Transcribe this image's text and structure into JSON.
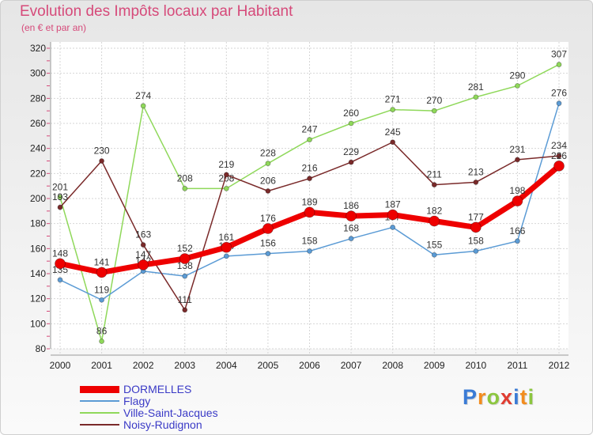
{
  "chart_data": {
    "type": "line",
    "title": "Evolution des Impôts locaux par Habitant",
    "subtitle": "(en € et par an)",
    "x": [
      "2000",
      "2001",
      "2002",
      "2003",
      "2004",
      "2005",
      "2006",
      "2007",
      "2008",
      "2009",
      "2010",
      "2011",
      "2012"
    ],
    "ylim": [
      80,
      320
    ],
    "yticks": [
      80,
      100,
      120,
      140,
      160,
      180,
      200,
      220,
      240,
      260,
      280,
      300,
      320
    ],
    "grid": true,
    "legend_position": "bottom-left",
    "series": [
      {
        "name": "DORMELLES",
        "color": "#ee0000",
        "values": [
          148,
          141,
          147,
          152,
          161,
          176,
          189,
          186,
          187,
          182,
          177,
          198,
          226
        ]
      },
      {
        "name": "Flagy",
        "color": "#5b9bd5",
        "values": [
          135,
          119,
          142,
          138,
          154,
          156,
          158,
          168,
          177,
          155,
          158,
          166,
          276
        ]
      },
      {
        "name": "Ville-Saint-Jacques",
        "color": "#8fd85a",
        "values": [
          201,
          86,
          274,
          208,
          208,
          228,
          247,
          260,
          271,
          270,
          281,
          290,
          307
        ]
      },
      {
        "name": "Noisy-Rudignon",
        "color": "#7a2a2a",
        "values": [
          193,
          230,
          163,
          111,
          219,
          206,
          216,
          229,
          245,
          211,
          213,
          231,
          234
        ]
      }
    ]
  },
  "logo": {
    "letters": [
      {
        "ch": "P",
        "color": "#3a7bd5"
      },
      {
        "ch": "r",
        "color": "#f28c1e"
      },
      {
        "ch": "o",
        "color": "#8cc63f"
      },
      {
        "ch": "x",
        "color": "#e03c31"
      },
      {
        "ch": "i",
        "color": "#3a7bd5"
      },
      {
        "ch": "t",
        "color": "#f28c1e"
      },
      {
        "ch": "i",
        "color": "#8cc63f"
      }
    ]
  }
}
